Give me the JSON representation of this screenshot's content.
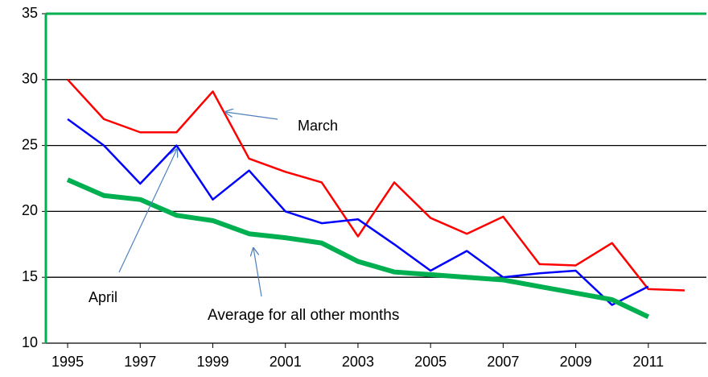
{
  "chart_data": {
    "type": "line",
    "x": [
      1995,
      1996,
      1997,
      1998,
      1999,
      2000,
      2001,
      2002,
      2003,
      2004,
      2005,
      2006,
      2007,
      2008,
      2009,
      2010,
      2011,
      2012
    ],
    "series": [
      {
        "name": "March",
        "color": "#ff0000",
        "values": [
          30,
          27,
          26,
          26,
          29.1,
          24,
          23,
          22.2,
          18.1,
          22.2,
          19.5,
          18.3,
          19.6,
          16,
          15.9,
          17.6,
          14.1,
          14.0
        ]
      },
      {
        "name": "April",
        "color": "#0000ff",
        "values": [
          27,
          25,
          22.1,
          25,
          20.9,
          23.1,
          20,
          19.1,
          19.4,
          17.5,
          15.5,
          17,
          15,
          15.3,
          15.5,
          12.9,
          14.3,
          null
        ]
      },
      {
        "name": "Average for all other months",
        "color": "#00b050",
        "values": [
          22.4,
          21.2,
          20.9,
          19.7,
          19.3,
          18.3,
          18.0,
          17.6,
          16.2,
          15.4,
          15.2,
          15.0,
          14.8,
          14.3,
          13.8,
          13.3,
          12.0,
          null
        ]
      }
    ],
    "xlim": [
      1994.4,
      2012.6
    ],
    "xticks": [
      1995,
      1997,
      1999,
      2001,
      2003,
      2005,
      2007,
      2009,
      2011
    ],
    "ylim": [
      10,
      35
    ],
    "yticks": [
      10,
      15,
      20,
      25,
      30,
      35
    ],
    "grid": true
  }
}
